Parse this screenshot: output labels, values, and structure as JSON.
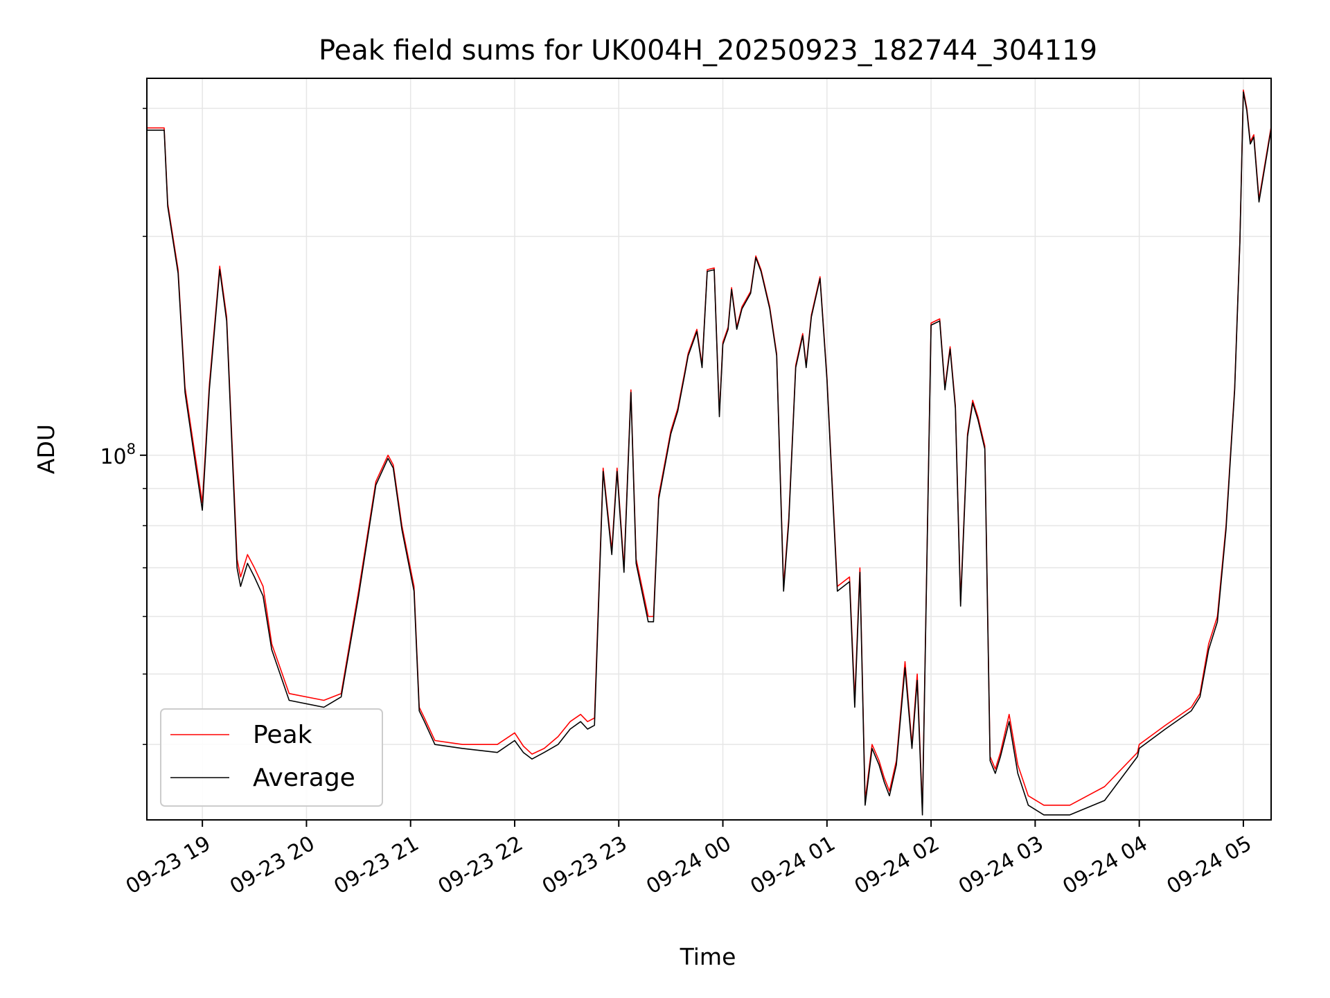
{
  "chart_data": {
    "type": "line",
    "title": "Peak field sums for UK004H_20250923_182744_304119",
    "xlabel": "Time",
    "ylabel": "ADU",
    "yscale": "log",
    "xlim": [
      "2025-09-23 18:28",
      "2025-09-24 05:16"
    ],
    "ylim": [
      31500000,
      330000000
    ],
    "grid": true,
    "legend_placement": "lower-left",
    "x_tick_labels": [
      "09-23 19",
      "09-23 20",
      "09-23 21",
      "09-23 22",
      "09-23 23",
      "09-24 00",
      "09-24 01",
      "09-24 02",
      "09-24 03",
      "09-24 04",
      "09-24 05"
    ],
    "x_ticks": [
      "2025-09-23 19:00",
      "2025-09-23 20:00",
      "2025-09-23 21:00",
      "2025-09-23 22:00",
      "2025-09-23 23:00",
      "2025-09-24 00:00",
      "2025-09-24 01:00",
      "2025-09-24 02:00",
      "2025-09-24 03:00",
      "2025-09-24 04:00",
      "2025-09-24 05:00"
    ],
    "y_major_tick": {
      "value": 100000000,
      "base": "10",
      "exponent": "8"
    },
    "y_minor_ticks": [
      40000000,
      50000000,
      60000000,
      70000000,
      80000000,
      90000000,
      200000000,
      300000000
    ],
    "colors": {
      "Peak": "#ff0000",
      "Average": "#000000"
    },
    "x": [
      "2025-09-23 18:28",
      "2025-09-23 18:38",
      "2025-09-23 18:40",
      "2025-09-23 18:46",
      "2025-09-23 18:50",
      "2025-09-23 18:55",
      "2025-09-23 19:00",
      "2025-09-23 19:04",
      "2025-09-23 19:10",
      "2025-09-23 19:14",
      "2025-09-23 19:20",
      "2025-09-23 19:22",
      "2025-09-23 19:26",
      "2025-09-23 19:30",
      "2025-09-23 19:35",
      "2025-09-23 19:40",
      "2025-09-23 19:50",
      "2025-09-23 20:10",
      "2025-09-23 20:20",
      "2025-09-23 20:30",
      "2025-09-23 20:40",
      "2025-09-23 20:47",
      "2025-09-23 20:50",
      "2025-09-23 20:55",
      "2025-09-23 21:02",
      "2025-09-23 21:05",
      "2025-09-23 21:08",
      "2025-09-23 21:14",
      "2025-09-23 21:30",
      "2025-09-23 21:50",
      "2025-09-23 22:00",
      "2025-09-23 22:05",
      "2025-09-23 22:10",
      "2025-09-23 22:17",
      "2025-09-23 22:25",
      "2025-09-23 22:32",
      "2025-09-23 22:38",
      "2025-09-23 22:42",
      "2025-09-23 22:46",
      "2025-09-23 22:51",
      "2025-09-23 22:56",
      "2025-09-23 22:59",
      "2025-09-23 23:03",
      "2025-09-23 23:07",
      "2025-09-23 23:10",
      "2025-09-23 23:17",
      "2025-09-23 23:20",
      "2025-09-23 23:23",
      "2025-09-23 23:30",
      "2025-09-23 23:34",
      "2025-09-23 23:38",
      "2025-09-23 23:40",
      "2025-09-23 23:45",
      "2025-09-23 23:48",
      "2025-09-23 23:51",
      "2025-09-23 23:55",
      "2025-09-23 23:58",
      "2025-09-24 00:00",
      "2025-09-24 00:03",
      "2025-09-24 00:05",
      "2025-09-24 00:08",
      "2025-09-24 00:11",
      "2025-09-24 00:16",
      "2025-09-24 00:19",
      "2025-09-24 00:22",
      "2025-09-24 00:27",
      "2025-09-24 00:31",
      "2025-09-24 00:35",
      "2025-09-24 00:38",
      "2025-09-24 00:42",
      "2025-09-24 00:46",
      "2025-09-24 00:48",
      "2025-09-24 00:51",
      "2025-09-24 00:56",
      "2025-09-24 01:00",
      "2025-09-24 01:06",
      "2025-09-24 01:13",
      "2025-09-24 01:16",
      "2025-09-24 01:19",
      "2025-09-24 01:22",
      "2025-09-24 01:26",
      "2025-09-24 01:30",
      "2025-09-24 01:33",
      "2025-09-24 01:36",
      "2025-09-24 01:40",
      "2025-09-24 01:45",
      "2025-09-24 01:49",
      "2025-09-24 01:52",
      "2025-09-24 01:55",
      "2025-09-24 02:00",
      "2025-09-24 02:05",
      "2025-09-24 02:08",
      "2025-09-24 02:11",
      "2025-09-24 02:14",
      "2025-09-24 02:17",
      "2025-09-24 02:21",
      "2025-09-24 02:24",
      "2025-09-24 02:27",
      "2025-09-24 02:31",
      "2025-09-24 02:34",
      "2025-09-24 02:37",
      "2025-09-24 02:40",
      "2025-09-24 02:45",
      "2025-09-24 02:50",
      "2025-09-24 02:56",
      "2025-09-24 03:05",
      "2025-09-24 03:20",
      "2025-09-24 03:40",
      "2025-09-24 03:59",
      "2025-09-24 04:00",
      "2025-09-24 04:15",
      "2025-09-24 04:30",
      "2025-09-24 04:35",
      "2025-09-24 04:40",
      "2025-09-24 04:45",
      "2025-09-24 04:50",
      "2025-09-24 04:55",
      "2025-09-24 04:58",
      "2025-09-24 05:00",
      "2025-09-24 05:02",
      "2025-09-24 05:04",
      "2025-09-24 05:06",
      "2025-09-24 05:09",
      "2025-09-24 05:16"
    ],
    "series": [
      {
        "name": "Peak",
        "values": [
          282000000,
          282000000,
          222000000,
          180000000,
          124000000,
          103000000,
          86000000,
          125000000,
          182000000,
          155000000,
          72000000,
          68000000,
          73000000,
          70000000,
          66000000,
          55000000,
          47000000,
          46000000,
          47000000,
          65000000,
          92000000,
          100000000,
          97000000,
          80000000,
          66000000,
          45000000,
          43500000,
          40500000,
          40000000,
          40000000,
          41500000,
          39800000,
          38800000,
          39500000,
          41000000,
          43000000,
          44000000,
          43000000,
          43500000,
          96000000,
          74000000,
          96000000,
          70000000,
          123000000,
          72000000,
          60000000,
          60000000,
          88000000,
          108000000,
          116000000,
          130000000,
          138000000,
          149000000,
          133000000,
          180000000,
          181000000,
          114000000,
          143000000,
          150000000,
          170000000,
          150000000,
          160000000,
          168000000,
          188000000,
          180000000,
          160000000,
          138000000,
          66000000,
          82000000,
          133000000,
          147000000,
          133000000,
          156000000,
          176000000,
          128000000,
          66000000,
          68000000,
          46000000,
          70000000,
          33500000,
          40000000,
          38000000,
          36000000,
          34500000,
          38000000,
          52000000,
          40000000,
          50000000,
          32500000,
          152000000,
          154000000,
          124000000,
          141000000,
          117000000,
          63000000,
          107000000,
          119000000,
          113000000,
          103000000,
          38500000,
          37000000,
          39000000,
          44000000,
          37500000,
          34000000,
          33000000,
          33000000,
          35000000,
          39000000,
          40000000,
          42500000,
          45000000,
          47000000,
          55000000,
          60000000,
          80000000,
          124000000,
          197000000,
          318000000,
          300000000,
          270000000,
          276000000,
          225000000,
          283000000
        ]
      },
      {
        "name": "Average",
        "values": [
          280000000,
          280000000,
          220000000,
          178000000,
          122000000,
          101000000,
          84000000,
          123000000,
          180000000,
          153000000,
          70000000,
          66000000,
          71000000,
          68000000,
          64000000,
          54000000,
          46000000,
          45000000,
          46500000,
          64000000,
          91000000,
          99000000,
          96000000,
          79000000,
          65000000,
          44500000,
          43000000,
          40000000,
          39500000,
          39000000,
          40500000,
          39000000,
          38200000,
          39000000,
          40000000,
          42000000,
          43000000,
          42000000,
          42500000,
          95000000,
          73000000,
          95000000,
          69000000,
          122000000,
          71000000,
          59000000,
          59000000,
          87000000,
          107000000,
          115000000,
          129000000,
          137000000,
          148000000,
          132000000,
          179000000,
          180000000,
          113000000,
          142000000,
          149000000,
          169000000,
          149000000,
          159000000,
          167000000,
          187000000,
          179000000,
          159000000,
          137000000,
          65000000,
          81000000,
          132000000,
          146000000,
          132000000,
          155000000,
          175000000,
          127000000,
          65000000,
          67000000,
          45000000,
          69000000,
          33000000,
          39500000,
          37500000,
          35500000,
          34000000,
          37500000,
          51000000,
          39500000,
          49000000,
          32000000,
          151000000,
          153000000,
          123000000,
          140000000,
          116000000,
          62000000,
          106000000,
          118000000,
          112000000,
          102000000,
          38000000,
          36500000,
          38500000,
          43000000,
          36500000,
          33000000,
          32000000,
          32000000,
          33500000,
          38500000,
          39500000,
          42000000,
          44500000,
          46500000,
          54000000,
          59000000,
          79000000,
          123000000,
          196000000,
          316000000,
          298000000,
          268000000,
          274000000,
          223000000,
          281000000
        ]
      }
    ]
  }
}
